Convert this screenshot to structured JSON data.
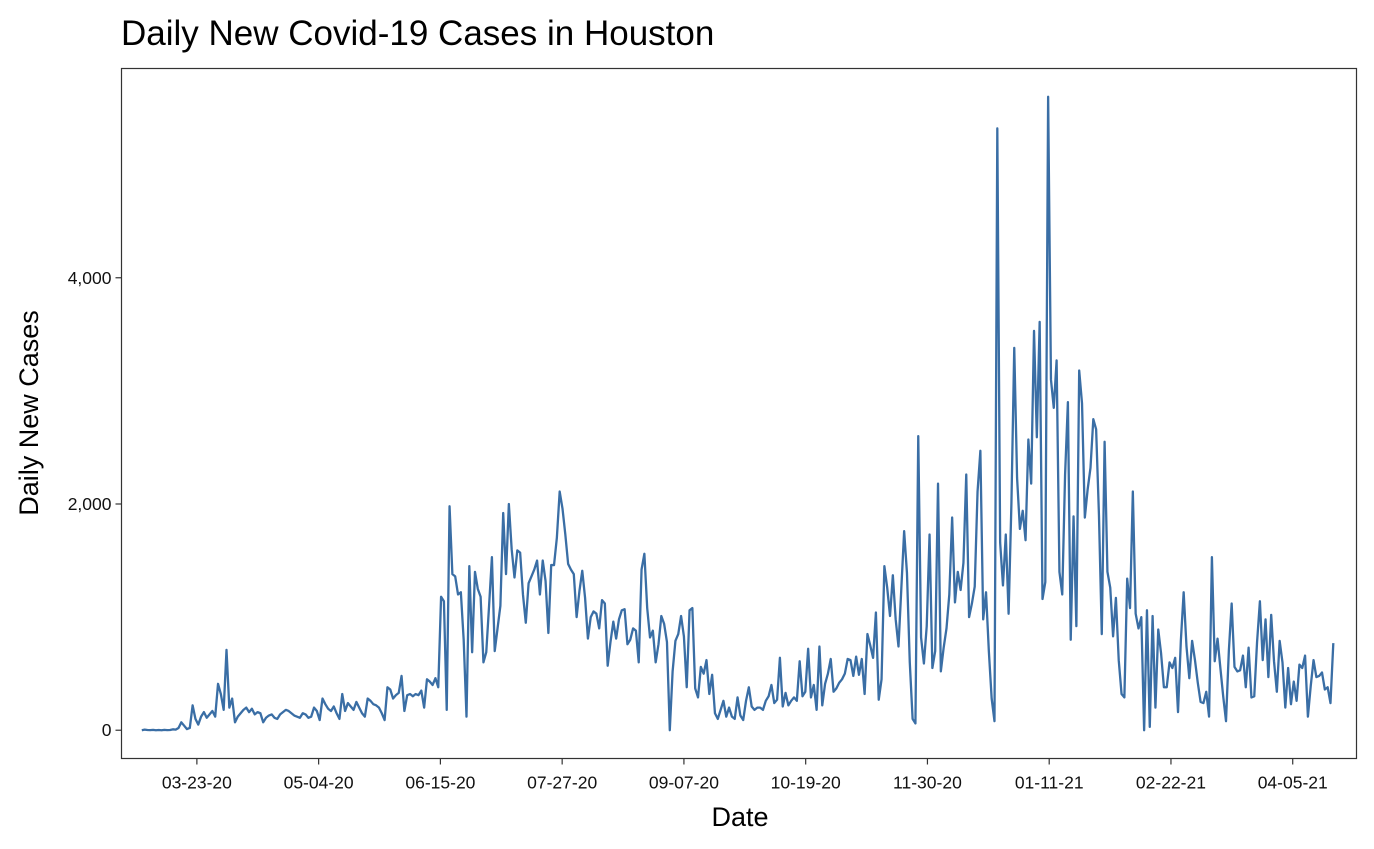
{
  "chart_data": {
    "type": "line",
    "title": "Daily New Covid-19 Cases in Houston",
    "xlabel": "Date",
    "ylabel": "Daily New Cases",
    "x_start": "2020-03-04",
    "x_end": "2021-04-19",
    "xlim": [
      "2020-02-26",
      "2021-04-27"
    ],
    "ylim": [
      -250,
      5850
    ],
    "x_ticks": [
      {
        "date": "2020-03-23",
        "label": "03-23-20"
      },
      {
        "date": "2020-05-04",
        "label": "05-04-20"
      },
      {
        "date": "2020-06-15",
        "label": "06-15-20"
      },
      {
        "date": "2020-07-27",
        "label": "07-27-20"
      },
      {
        "date": "2020-09-07",
        "label": "09-07-20"
      },
      {
        "date": "2020-10-19",
        "label": "10-19-20"
      },
      {
        "date": "2020-11-30",
        "label": "11-30-20"
      },
      {
        "date": "2021-01-11",
        "label": "01-11-21"
      },
      {
        "date": "2021-02-22",
        "label": "02-22-21"
      },
      {
        "date": "2021-04-05",
        "label": "04-05-21"
      }
    ],
    "y_ticks": [
      {
        "value": 0,
        "label": "0"
      },
      {
        "value": 2000,
        "label": "2,000"
      },
      {
        "value": 4000,
        "label": "4,000"
      }
    ],
    "grid": false,
    "series": [
      {
        "color": "#3a6ea5",
        "values": [
          0,
          5,
          2,
          1,
          3,
          0,
          2,
          0,
          3,
          1,
          2,
          8,
          5,
          20,
          70,
          40,
          10,
          20,
          220,
          100,
          50,
          120,
          160,
          110,
          140,
          170,
          120,
          410,
          320,
          180,
          710,
          200,
          280,
          70,
          120,
          150,
          180,
          200,
          160,
          190,
          140,
          160,
          150,
          70,
          110,
          130,
          140,
          110,
          100,
          140,
          160,
          180,
          170,
          150,
          130,
          120,
          110,
          150,
          140,
          110,
          120,
          200,
          170,
          90,
          280,
          230,
          190,
          170,
          210,
          150,
          100,
          320,
          170,
          240,
          210,
          180,
          250,
          200,
          150,
          120,
          280,
          260,
          230,
          220,
          200,
          150,
          90,
          380,
          360,
          280,
          310,
          330,
          480,
          170,
          310,
          320,
          300,
          320,
          310,
          350,
          200,
          450,
          430,
          400,
          460,
          380,
          1180,
          1140,
          180,
          1980,
          1380,
          1360,
          1200,
          1220,
          800,
          120,
          1450,
          690,
          1400,
          1250,
          1180,
          600,
          690,
          1100,
          1530,
          700,
          900,
          1100,
          1920,
          1380,
          2000,
          1600,
          1350,
          1590,
          1570,
          1200,
          950,
          1300,
          1360,
          1420,
          1500,
          1200,
          1500,
          1320,
          860,
          1460,
          1460,
          1700,
          2110,
          1960,
          1730,
          1470,
          1420,
          1380,
          1000,
          1230,
          1410,
          1170,
          810,
          1000,
          1050,
          1030,
          900,
          1150,
          1120,
          570,
          780,
          960,
          810,
          980,
          1060,
          1070,
          760,
          800,
          900,
          880,
          600,
          1420,
          1560,
          1080,
          820,
          880,
          600,
          760,
          1010,
          940,
          780,
          0,
          520,
          790,
          850,
          1010,
          830,
          380,
          1060,
          1080,
          370,
          290,
          560,
          500,
          620,
          320,
          490,
          150,
          100,
          180,
          260,
          120,
          200,
          120,
          100,
          290,
          130,
          90,
          260,
          380,
          210,
          180,
          200,
          200,
          180,
          260,
          300,
          400,
          240,
          270,
          640,
          210,
          330,
          220,
          260,
          290,
          260,
          610,
          300,
          340,
          720,
          290,
          400,
          180,
          740,
          220,
          410,
          500,
          630,
          340,
          370,
          420,
          450,
          500,
          630,
          620,
          480,
          650,
          490,
          630,
          320,
          850,
          750,
          640,
          1040,
          270,
          450,
          1450,
          1260,
          1010,
          1370,
          980,
          740,
          1250,
          1760,
          1390,
          600,
          100,
          60,
          2600,
          820,
          590,
          920,
          1730,
          550,
          700,
          2180,
          520,
          730,
          900,
          1200,
          1880,
          1130,
          1400,
          1240,
          1480,
          2260,
          1000,
          1120,
          1270,
          2110,
          2470,
          980,
          1220,
          700,
          280,
          80,
          5320,
          1660,
          1280,
          1730,
          1030,
          2010,
          3380,
          2230,
          1780,
          1940,
          1680,
          2570,
          2180,
          3530,
          2590,
          3610,
          1160,
          1310,
          5600,
          3100,
          2850,
          3270,
          1400,
          1200,
          2260,
          2900,
          800,
          1890,
          920,
          3180,
          2890,
          1880,
          2130,
          2320,
          2750,
          2660,
          1900,
          850,
          2550,
          1400,
          1260,
          830,
          1170,
          620,
          320,
          290,
          1340,
          1080,
          2110,
          1030,
          900,
          1000,
          0,
          1060,
          30,
          1010,
          200,
          890,
          680,
          380,
          380,
          600,
          550,
          640,
          160,
          790,
          1220,
          740,
          460,
          790,
          620,
          420,
          250,
          240,
          340,
          120,
          1530,
          610,
          810,
          550,
          300,
          80,
          700,
          1120,
          560,
          520,
          530,
          660,
          380,
          730,
          290,
          300,
          780,
          1140,
          620,
          980,
          470,
          1020,
          610,
          340,
          790,
          600,
          200,
          550,
          230,
          430,
          260,
          580,
          550,
          660,
          120,
          390,
          620,
          470,
          480,
          510,
          360,
          380,
          240,
          770
        ]
      }
    ]
  }
}
